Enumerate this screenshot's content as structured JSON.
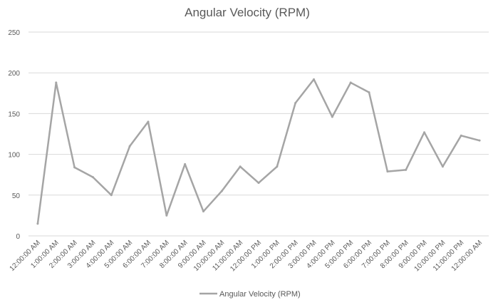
{
  "chart_data": {
    "type": "line",
    "title": "Angular Velocity (RPM)",
    "xlabel": "",
    "ylabel": "",
    "ylim": [
      0,
      250
    ],
    "yticks": [
      0,
      50,
      100,
      150,
      200,
      250
    ],
    "grid": true,
    "legend_position": "bottom",
    "categories": [
      "12:00:00 AM",
      "1:00:00 AM",
      "2:00:00 AM",
      "3:00:00 AM",
      "4:00:00 AM",
      "5:00:00 AM",
      "6:00:00 AM",
      "7:00:00 AM",
      "8:00:00 AM",
      "9:00:00 AM",
      "10:00:00 AM",
      "11:00:00 AM",
      "12:00:00 PM",
      "1:00:00 PM",
      "2:00:00 PM",
      "3:00:00 PM",
      "4:00:00 PM",
      "5:00:00 PM",
      "6:00:00 PM",
      "7:00:00 PM",
      "8:00:00 PM",
      "9:00:00 PM",
      "10:00:00 PM",
      "11:00:00 PM",
      "12:00:00 AM"
    ],
    "series": [
      {
        "name": "Angular Velocity (RPM)",
        "color": "#a5a5a5",
        "values": [
          15,
          188,
          84,
          72,
          50,
          110,
          140,
          25,
          88,
          30,
          55,
          85,
          65,
          85,
          163,
          192,
          146,
          188,
          176,
          79,
          81,
          127,
          85,
          123,
          117
        ]
      }
    ]
  }
}
